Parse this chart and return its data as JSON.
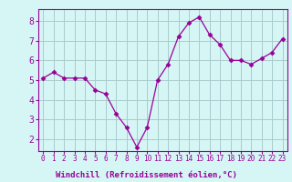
{
  "x": [
    0,
    1,
    2,
    3,
    4,
    5,
    6,
    7,
    8,
    9,
    10,
    11,
    12,
    13,
    14,
    15,
    16,
    17,
    18,
    19,
    20,
    21,
    22,
    23
  ],
  "y": [
    5.1,
    5.4,
    5.1,
    5.1,
    5.1,
    4.5,
    4.3,
    3.3,
    2.6,
    1.6,
    2.6,
    5.0,
    5.8,
    7.2,
    7.9,
    8.2,
    7.3,
    6.8,
    6.0,
    6.0,
    5.8,
    6.1,
    6.4,
    7.1
  ],
  "line_color": "#990099",
  "marker": "D",
  "marker_size": 2.5,
  "bg_color": "#d6f5f5",
  "grid_color": "#aacccc",
  "xlabel": "Windchill (Refroidissement éolien,°C)",
  "xlabel_text_color": "#990099",
  "xlabel_bg": "#990099",
  "ylim": [
    1.4,
    8.6
  ],
  "yticks": [
    2,
    3,
    4,
    5,
    6,
    7,
    8
  ],
  "xticks": [
    0,
    1,
    2,
    3,
    4,
    5,
    6,
    7,
    8,
    9,
    10,
    11,
    12,
    13,
    14,
    15,
    16,
    17,
    18,
    19,
    20,
    21,
    22,
    23
  ],
  "tick_color": "#990099",
  "spine_color": "#990099",
  "tick_fontsize": 5.5,
  "ytick_fontsize": 7
}
